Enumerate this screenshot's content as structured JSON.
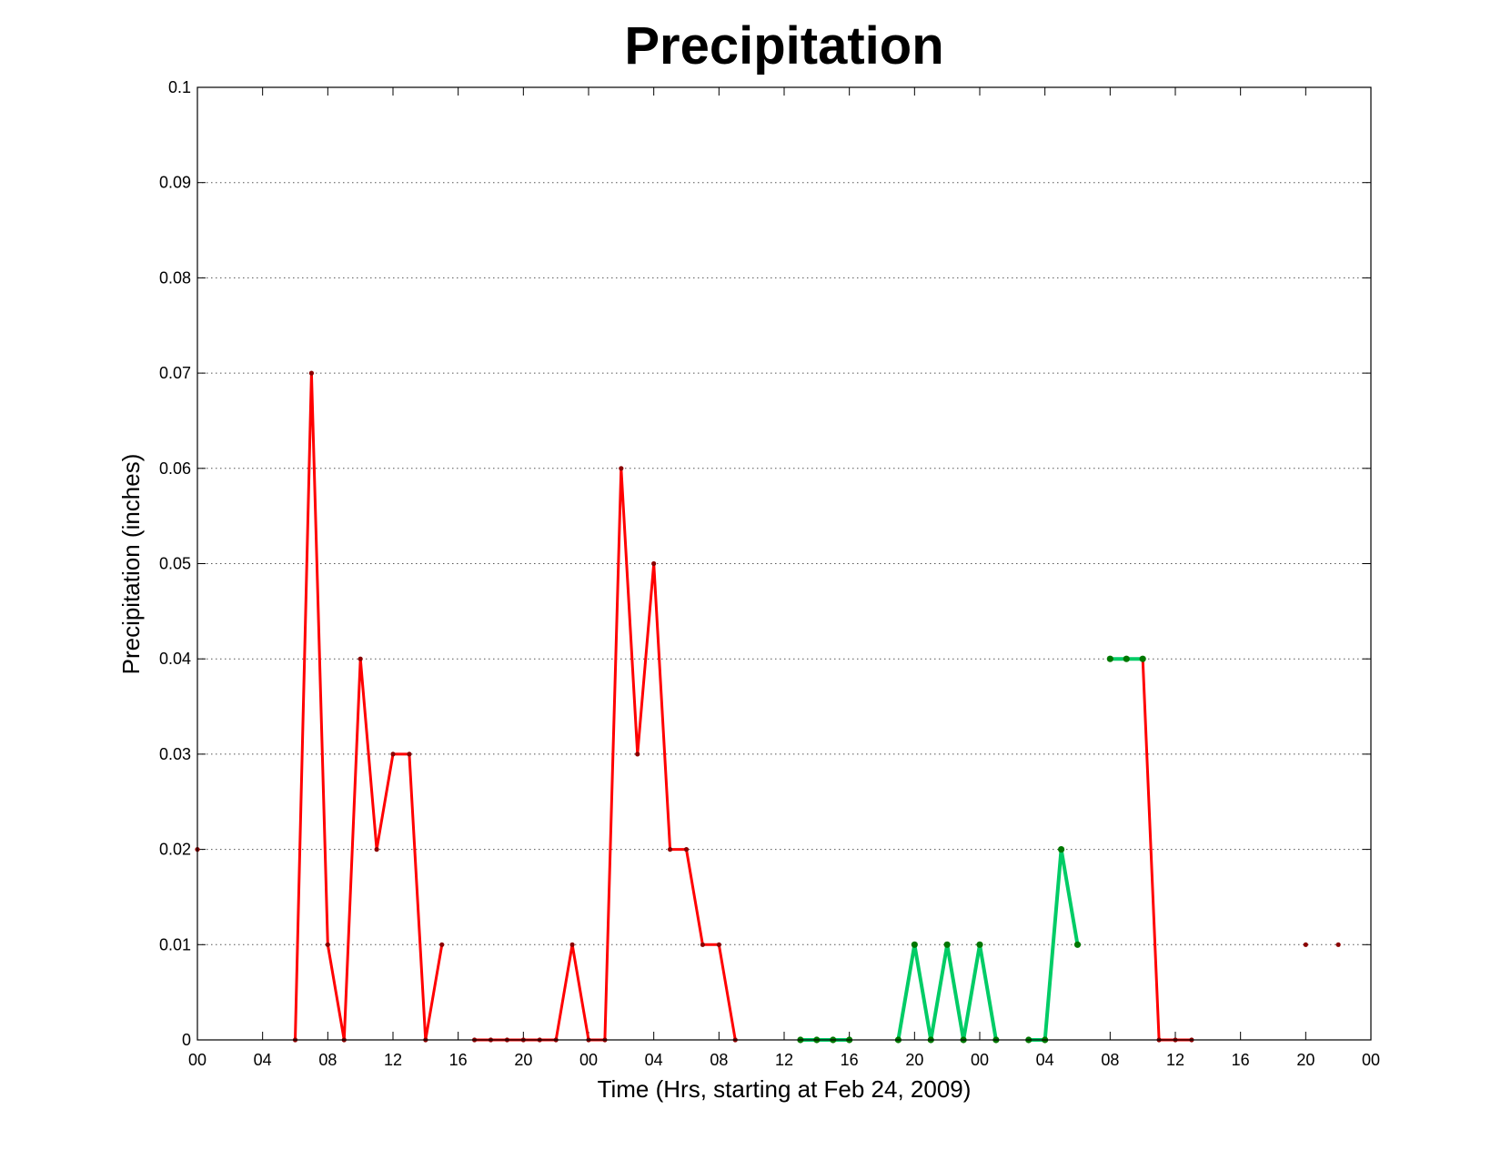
{
  "chart_data": {
    "type": "line",
    "title": "Precipitation",
    "xlabel": "Time (Hrs, starting at Feb 24, 2009)",
    "ylabel": "Precipitation (inches)",
    "x_unit": "hours",
    "xlim": [
      0,
      72
    ],
    "ylim": [
      0,
      0.1
    ],
    "grid": "y",
    "x_ticks": [
      0,
      4,
      8,
      12,
      16,
      20,
      24,
      28,
      32,
      36,
      40,
      44,
      48,
      52,
      56,
      60,
      64,
      68,
      72
    ],
    "x_tick_labels": [
      "00",
      "04",
      "08",
      "12",
      "16",
      "20",
      "00",
      "04",
      "08",
      "12",
      "16",
      "20",
      "00",
      "04",
      "08",
      "12",
      "16",
      "20",
      "00"
    ],
    "y_ticks": [
      0,
      0.01,
      0.02,
      0.03,
      0.04,
      0.05,
      0.06,
      0.07,
      0.08,
      0.09,
      0.1
    ],
    "y_tick_labels": [
      "0",
      "0.01",
      "0.02",
      "0.03",
      "0.04",
      "0.05",
      "0.06",
      "0.07",
      "0.08",
      "0.09",
      "0.1"
    ],
    "colors": {
      "observed": "#ff0000",
      "observed_marker": "#8b0000",
      "forecast": "#00cc66",
      "forecast_marker": "#007700"
    },
    "series": [
      {
        "style": "observed",
        "segments": [
          [
            [
              0,
              0.02
            ]
          ],
          [
            [
              6,
              0
            ],
            [
              7,
              0.07
            ],
            [
              8,
              0.01
            ],
            [
              9,
              0
            ],
            [
              10,
              0.04
            ],
            [
              11,
              0.02
            ],
            [
              12,
              0.03
            ],
            [
              13,
              0.03
            ],
            [
              14,
              0
            ],
            [
              15,
              0.01
            ]
          ],
          [
            [
              17,
              0
            ],
            [
              18,
              0
            ],
            [
              19,
              0
            ],
            [
              20,
              0
            ],
            [
              21,
              0
            ],
            [
              22,
              0
            ],
            [
              23,
              0.01
            ],
            [
              24,
              0
            ],
            [
              25,
              0
            ],
            [
              26,
              0.06
            ],
            [
              27,
              0.03
            ],
            [
              28,
              0.05
            ],
            [
              29,
              0.02
            ],
            [
              30,
              0.02
            ],
            [
              31,
              0.01
            ],
            [
              32,
              0.01
            ],
            [
              33,
              0
            ]
          ],
          [
            [
              58,
              0.04
            ],
            [
              59,
              0
            ],
            [
              60,
              0
            ],
            [
              61,
              0
            ]
          ],
          [
            [
              68,
              0.01
            ]
          ],
          [
            [
              70,
              0.01
            ]
          ]
        ]
      },
      {
        "style": "forecast",
        "segments": [
          [
            [
              37,
              0
            ],
            [
              38,
              0
            ],
            [
              39,
              0
            ],
            [
              40,
              0
            ]
          ],
          [
            [
              43,
              0
            ],
            [
              44,
              0.01
            ],
            [
              45,
              0
            ],
            [
              46,
              0.01
            ],
            [
              47,
              0
            ],
            [
              48,
              0.01
            ],
            [
              49,
              0
            ]
          ],
          [
            [
              51,
              0
            ],
            [
              52,
              0
            ],
            [
              53,
              0.02
            ],
            [
              54,
              0.01
            ]
          ],
          [
            [
              56,
              0.04
            ],
            [
              57,
              0.04
            ],
            [
              58,
              0.04
            ]
          ]
        ]
      }
    ]
  }
}
